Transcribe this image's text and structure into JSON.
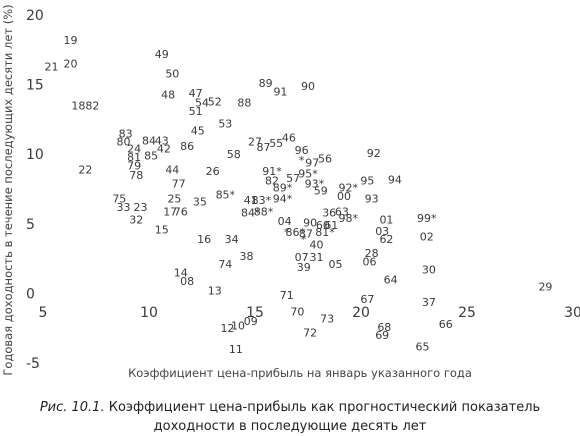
{
  "chart_data": {
    "type": "scatter",
    "xlabel": "Коэффициент цена-прибыль на январь указанного года",
    "ylabel": "Годовая доходность в течение последующих десяти лет (%)",
    "xlim": [
      5,
      30
    ],
    "ylim": [
      -5,
      20
    ],
    "xticks": [
      5,
      10,
      15,
      20,
      25,
      30
    ],
    "yticks": [
      20,
      15,
      10,
      5,
      0,
      -5
    ],
    "grid": false,
    "points": [
      {
        "label": "19",
        "x": 6.3,
        "y": 18.2
      },
      {
        "label": "21",
        "x": 5.4,
        "y": 16.3
      },
      {
        "label": "20",
        "x": 6.3,
        "y": 16.5
      },
      {
        "label": "1882",
        "x": 7.0,
        "y": 13.5
      },
      {
        "label": "22",
        "x": 7.0,
        "y": 8.9
      },
      {
        "label": "49",
        "x": 10.6,
        "y": 17.2
      },
      {
        "label": "50",
        "x": 11.1,
        "y": 15.8
      },
      {
        "label": "48",
        "x": 10.9,
        "y": 14.3
      },
      {
        "label": "47",
        "x": 12.2,
        "y": 14.4
      },
      {
        "label": "54",
        "x": 12.5,
        "y": 13.7
      },
      {
        "label": "52",
        "x": 13.1,
        "y": 13.8
      },
      {
        "label": "51",
        "x": 12.2,
        "y": 13.1
      },
      {
        "label": "88",
        "x": 14.5,
        "y": 13.7
      },
      {
        "label": "89",
        "x": 15.5,
        "y": 15.1
      },
      {
        "label": "91",
        "x": 16.2,
        "y": 14.5
      },
      {
        "label": "90",
        "x": 17.5,
        "y": 14.9
      },
      {
        "label": "53",
        "x": 13.6,
        "y": 12.2
      },
      {
        "label": "45",
        "x": 12.3,
        "y": 11.7
      },
      {
        "label": "83",
        "x": 8.9,
        "y": 11.5
      },
      {
        "label": "80",
        "x": 8.8,
        "y": 10.9
      },
      {
        "label": "84",
        "x": 10.0,
        "y": 11.0
      },
      {
        "label": "43",
        "x": 10.6,
        "y": 11.0
      },
      {
        "label": "86",
        "x": 11.8,
        "y": 10.6
      },
      {
        "label": "24",
        "x": 9.3,
        "y": 10.4
      },
      {
        "label": "42",
        "x": 10.7,
        "y": 10.4
      },
      {
        "label": "81",
        "x": 9.3,
        "y": 9.8
      },
      {
        "label": "85",
        "x": 10.1,
        "y": 9.9
      },
      {
        "label": "79",
        "x": 9.3,
        "y": 9.2
      },
      {
        "label": "78",
        "x": 9.4,
        "y": 8.5
      },
      {
        "label": "44",
        "x": 11.1,
        "y": 8.9
      },
      {
        "label": "26",
        "x": 13.0,
        "y": 8.8
      },
      {
        "label": "58",
        "x": 14.0,
        "y": 10.0
      },
      {
        "label": "27",
        "x": 15.0,
        "y": 10.9
      },
      {
        "label": "87",
        "x": 15.4,
        "y": 10.5
      },
      {
        "label": "55",
        "x": 16.0,
        "y": 10.8
      },
      {
        "label": "46",
        "x": 16.6,
        "y": 11.2
      },
      {
        "label": "96",
        "x": 17.2,
        "y": 10.3
      },
      {
        "label": "97",
        "x": 17.7,
        "y": 9.4
      },
      {
        "label": "56",
        "x": 18.3,
        "y": 9.7
      },
      {
        "label": "92",
        "x": 20.6,
        "y": 10.1
      },
      {
        "label": "77",
        "x": 11.4,
        "y": 7.9
      },
      {
        "label": "85*",
        "x": 13.6,
        "y": 7.1
      },
      {
        "label": "41",
        "x": 14.8,
        "y": 6.7
      },
      {
        "label": "83*",
        "x": 15.3,
        "y": 6.7
      },
      {
        "label": "94*",
        "x": 16.3,
        "y": 6.8
      },
      {
        "label": "91*",
        "x": 15.8,
        "y": 8.8
      },
      {
        "label": "82",
        "x": 15.8,
        "y": 8.1
      },
      {
        "label": "89*",
        "x": 16.3,
        "y": 7.6
      },
      {
        "label": "57",
        "x": 16.8,
        "y": 8.3
      },
      {
        "label": "95*",
        "x": 17.5,
        "y": 8.6
      },
      {
        "label": "93*",
        "x": 17.8,
        "y": 7.9
      },
      {
        "label": "59",
        "x": 18.1,
        "y": 7.4
      },
      {
        "label": "92*",
        "x": 19.4,
        "y": 7.6
      },
      {
        "label": "00",
        "x": 19.2,
        "y": 7.0
      },
      {
        "label": "95",
        "x": 20.3,
        "y": 8.1
      },
      {
        "label": "94",
        "x": 21.6,
        "y": 8.2
      },
      {
        "label": "93",
        "x": 20.5,
        "y": 6.8
      },
      {
        "label": "84*",
        "x": 14.8,
        "y": 5.8
      },
      {
        "label": "88*",
        "x": 15.4,
        "y": 5.9
      },
      {
        "label": "04",
        "x": 16.4,
        "y": 5.2
      },
      {
        "label": "36",
        "x": 18.5,
        "y": 5.8
      },
      {
        "label": "63",
        "x": 19.1,
        "y": 5.9
      },
      {
        "label": "98*",
        "x": 19.4,
        "y": 5.4
      },
      {
        "label": "01",
        "x": 21.2,
        "y": 5.3
      },
      {
        "label": "99*",
        "x": 23.1,
        "y": 5.4
      },
      {
        "label": "75",
        "x": 8.6,
        "y": 6.8
      },
      {
        "label": "33",
        "x": 8.8,
        "y": 6.2
      },
      {
        "label": "23",
        "x": 9.6,
        "y": 6.2
      },
      {
        "label": "25",
        "x": 11.2,
        "y": 6.8
      },
      {
        "label": "35",
        "x": 12.4,
        "y": 6.6
      },
      {
        "label": "17",
        "x": 11.0,
        "y": 5.9
      },
      {
        "label": "76",
        "x": 11.5,
        "y": 5.9
      },
      {
        "label": "32",
        "x": 9.4,
        "y": 5.3
      },
      {
        "label": "15",
        "x": 10.6,
        "y": 4.6
      },
      {
        "label": "16",
        "x": 12.6,
        "y": 3.9
      },
      {
        "label": "34",
        "x": 13.9,
        "y": 3.9
      },
      {
        "label": "86*",
        "x": 16.9,
        "y": 4.4
      },
      {
        "label": "87",
        "x": 17.4,
        "y": 4.3
      },
      {
        "label": "90",
        "x": 17.6,
        "y": 5.1
      },
      {
        "label": "60",
        "x": 18.2,
        "y": 4.9
      },
      {
        "label": "61",
        "x": 18.6,
        "y": 4.9
      },
      {
        "label": "81*",
        "x": 18.3,
        "y": 4.4
      },
      {
        "label": "40",
        "x": 17.9,
        "y": 3.5
      },
      {
        "label": "03",
        "x": 21.0,
        "y": 4.5
      },
      {
        "label": "62",
        "x": 21.2,
        "y": 3.9
      },
      {
        "label": "02",
        "x": 23.1,
        "y": 4.1
      },
      {
        "label": "38",
        "x": 14.6,
        "y": 2.7
      },
      {
        "label": "74",
        "x": 13.6,
        "y": 2.1
      },
      {
        "label": "07",
        "x": 17.2,
        "y": 2.6
      },
      {
        "label": "31",
        "x": 17.9,
        "y": 2.6
      },
      {
        "label": "39",
        "x": 17.3,
        "y": 1.9
      },
      {
        "label": "05",
        "x": 18.8,
        "y": 2.1
      },
      {
        "label": "28",
        "x": 20.5,
        "y": 2.9
      },
      {
        "label": "06",
        "x": 20.4,
        "y": 2.3
      },
      {
        "label": "64",
        "x": 21.4,
        "y": 1.0
      },
      {
        "label": "30",
        "x": 23.2,
        "y": 1.7
      },
      {
        "label": "14",
        "x": 11.5,
        "y": 1.5
      },
      {
        "label": "08",
        "x": 11.8,
        "y": 0.9
      },
      {
        "label": "13",
        "x": 13.1,
        "y": 0.2
      },
      {
        "label": "71",
        "x": 16.5,
        "y": -0.1
      },
      {
        "label": "67",
        "x": 20.3,
        "y": -0.4
      },
      {
        "label": "37",
        "x": 23.2,
        "y": -0.6
      },
      {
        "label": "29",
        "x": 28.7,
        "y": 0.5
      },
      {
        "label": "70",
        "x": 17.0,
        "y": -1.3
      },
      {
        "label": "73",
        "x": 18.4,
        "y": -1.8
      },
      {
        "label": "09",
        "x": 14.8,
        "y": -2.0
      },
      {
        "label": "10",
        "x": 14.2,
        "y": -2.3
      },
      {
        "label": "12",
        "x": 13.7,
        "y": -2.5
      },
      {
        "label": "72",
        "x": 17.6,
        "y": -2.8
      },
      {
        "label": "68",
        "x": 21.1,
        "y": -2.4
      },
      {
        "label": "69",
        "x": 21.0,
        "y": -3.0
      },
      {
        "label": "66",
        "x": 24.0,
        "y": -2.2
      },
      {
        "label": "65",
        "x": 22.9,
        "y": -3.8
      },
      {
        "label": "11",
        "x": 14.1,
        "y": -4.0
      }
    ],
    "asterisk_marks": [
      {
        "x": 17.2,
        "y": 9.6
      },
      {
        "x": 16.5,
        "y": 4.4
      },
      {
        "x": 17.3,
        "y": 3.9
      }
    ]
  },
  "caption": {
    "prefix": "Рис. 10.1.",
    "text": "Коэффициент цена-прибыль как прогностический показатель доходности в последующие десять лет"
  }
}
